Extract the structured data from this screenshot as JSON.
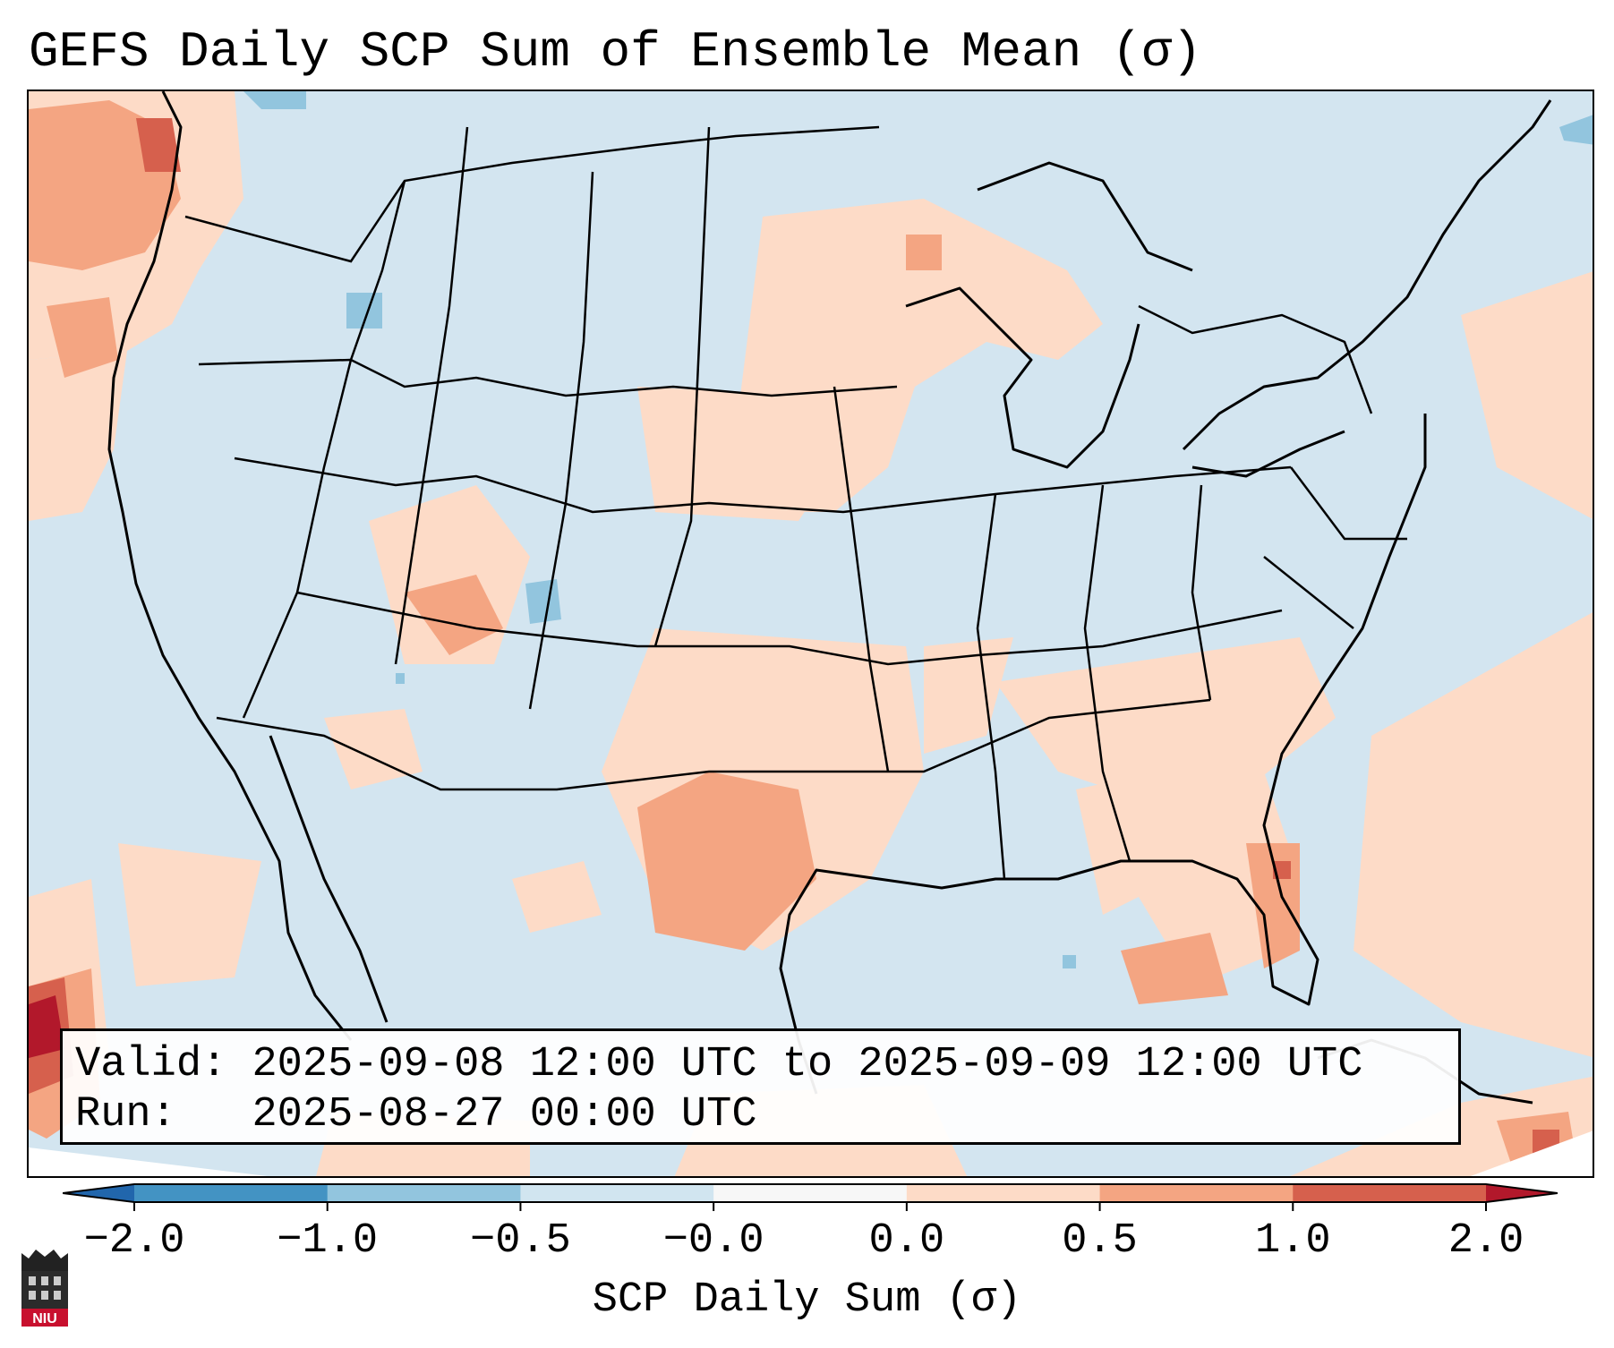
{
  "title": "GEFS Daily SCP Sum of Ensemble Mean (σ)",
  "info_box": {
    "valid_label": "Valid:",
    "valid_value": "2025-09-08 12:00 UTC to 2025-09-09 12:00 UTC",
    "run_label": "Run:",
    "run_value": "2025-08-27 00:00 UTC"
  },
  "colorbar": {
    "label": "SCP Daily Sum (σ)",
    "ticks": [
      "−2.0",
      "−1.0",
      "−0.5",
      "−0.0",
      "0.0",
      "0.5",
      "1.0",
      "2.0"
    ],
    "colors": [
      "#4393c3",
      "#92c5de",
      "#d1e5f0",
      "#f7f7f7",
      "#fddbc7",
      "#f4a582",
      "#d6604d"
    ],
    "under_color": "#2166ac",
    "over_color": "#b2182b"
  },
  "map": {
    "background_color": "#d3e5f0",
    "positive_anomaly_color": "#fddbc7",
    "moderate_anomaly_color": "#f4a582",
    "strong_anomaly_color": "#d6604d",
    "extreme_anomaly_color": "#b2182b",
    "negative_anomaly_color": "#92c5de"
  },
  "logo": {
    "text": "NIU"
  }
}
